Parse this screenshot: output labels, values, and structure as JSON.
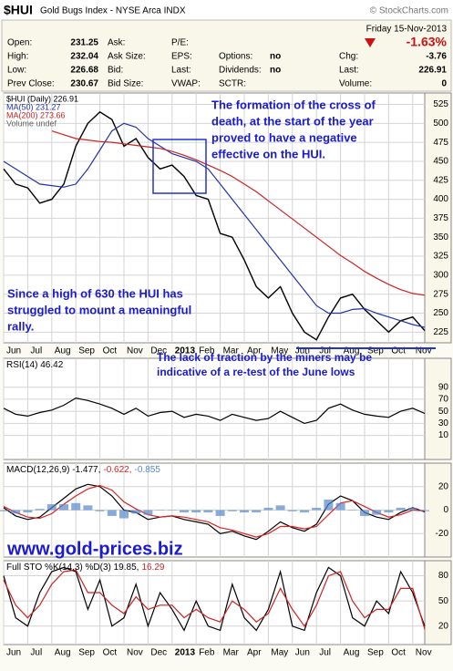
{
  "header": {
    "symbol": "$HUI",
    "name": "Gold Bugs Index - NYSE Arca INDX",
    "credit": "© StockCharts.com",
    "date": "Friday 15-Nov-2013",
    "change_pct": "-1.63%",
    "columns": [
      [
        {
          "label": "Open:",
          "value": "231.25"
        },
        {
          "label": "High:",
          "value": "232.04"
        },
        {
          "label": "Low:",
          "value": "226.68"
        },
        {
          "label": "Prev Close:",
          "value": "230.67"
        }
      ],
      [
        {
          "label": "Ask:"
        },
        {
          "label": "Ask Size:"
        },
        {
          "label": "Bid:"
        },
        {
          "label": "Bid Size:"
        }
      ],
      [
        {
          "label": "P/E:"
        },
        {
          "label": "EPS:"
        },
        {
          "label": "Last:"
        },
        {
          "label": "VWAP:"
        }
      ],
      [
        {
          "label": "Options:",
          "value": "no"
        },
        {
          "label": "Dividends:",
          "value": "no"
        },
        {
          "label": "SCTR:"
        }
      ],
      [
        {
          "label": "Chg:",
          "value": "-3.76"
        },
        {
          "label": "Last:",
          "value": "226.91"
        },
        {
          "label": "Volume:",
          "value": "0"
        }
      ]
    ]
  },
  "chart_data": [
    {
      "type": "line",
      "xlim": [
        0,
        17.5
      ],
      "ylim": [
        211,
        540
      ],
      "grid": true,
      "yticks": [
        225,
        250,
        275,
        300,
        325,
        350,
        375,
        400,
        425,
        450,
        475,
        500,
        525
      ],
      "xticks": [
        {
          "value": 0,
          "label": "Jun"
        },
        {
          "value": 1,
          "label": "Jul"
        },
        {
          "value": 2,
          "label": "Aug"
        },
        {
          "value": 3,
          "label": "Sep"
        },
        {
          "value": 4,
          "label": "Oct"
        },
        {
          "value": 5,
          "label": "Nov"
        },
        {
          "value": 6,
          "label": "Dec"
        },
        {
          "value": 7,
          "label": "2013"
        },
        {
          "value": 8,
          "label": "Feb"
        },
        {
          "value": 9,
          "label": "Mar"
        },
        {
          "value": 10,
          "label": "Apr"
        },
        {
          "value": 11,
          "label": "May"
        },
        {
          "value": 12,
          "label": "Jun"
        },
        {
          "value": 13,
          "label": "Jul"
        },
        {
          "value": 14,
          "label": "Aug"
        },
        {
          "value": 15,
          "label": "Sep"
        },
        {
          "value": 16,
          "label": "Oct"
        },
        {
          "value": 17,
          "label": "Nov"
        }
      ],
      "x": [
        0,
        0.5,
        1,
        1.5,
        2,
        2.5,
        3,
        3.5,
        4,
        4.5,
        5,
        5.5,
        6,
        6.5,
        7,
        7.5,
        8,
        8.5,
        9,
        9.5,
        10,
        10.5,
        11,
        11.5,
        12,
        12.5,
        13,
        13.5,
        14,
        14.5,
        15,
        15.5,
        16,
        16.5,
        17,
        17.5
      ],
      "series": [
        {
          "name": "$HUI (Daily) 226.91",
          "color": "#000000",
          "values": [
            440,
            420,
            415,
            395,
            400,
            420,
            470,
            500,
            515,
            505,
            470,
            480,
            455,
            440,
            445,
            430,
            405,
            400,
            355,
            350,
            320,
            285,
            270,
            285,
            250,
            225,
            215,
            245,
            270,
            275,
            255,
            240,
            225,
            240,
            245,
            226.91
          ]
        },
        {
          "name": "MA(50) 231.27",
          "color": "#2233aa",
          "values": [
            450,
            440,
            430,
            420,
            418,
            416,
            420,
            440,
            465,
            490,
            500,
            495,
            480,
            470,
            460,
            455,
            450,
            440,
            420,
            400,
            380,
            360,
            340,
            320,
            300,
            280,
            260,
            250,
            250,
            255,
            256,
            250,
            245,
            240,
            235,
            231.27
          ]
        },
        {
          "name": "MA(200) 273.66",
          "color": "#cc2222",
          "values": [
            null,
            null,
            null,
            null,
            490,
            485,
            480,
            478,
            476,
            475,
            473,
            471,
            469,
            467,
            463,
            458,
            452,
            445,
            438,
            430,
            420,
            410,
            398,
            386,
            374,
            362,
            350,
            338,
            326,
            316,
            305,
            296,
            288,
            281,
            276,
            273.66
          ]
        }
      ],
      "note": "Volume undef",
      "annotations": [
        [
          "The formation of the cross of",
          "death, at the start of the year",
          "proved to have a negative",
          "effective on the HUI."
        ],
        [
          "Since a high of 630 the HUI has",
          "struggled to mount a meaningful",
          "rally."
        ]
      ]
    },
    {
      "type": "line",
      "xlim": [
        0,
        17.5
      ],
      "ylim": [
        -30,
        138
      ],
      "grid": true,
      "yticks": [
        10,
        30,
        50,
        70,
        90
      ],
      "xticks": [
        0,
        1,
        2,
        3,
        4,
        5,
        6,
        7,
        8,
        9,
        10,
        11,
        12,
        13,
        14,
        15,
        16,
        17
      ],
      "x": [
        0,
        0.5,
        1,
        1.5,
        2,
        2.5,
        3,
        3.5,
        4,
        4.5,
        5,
        5.5,
        6,
        6.5,
        7,
        7.5,
        8,
        8.5,
        9,
        9.5,
        10,
        10.5,
        11,
        11.5,
        12,
        12.5,
        13,
        13.5,
        14,
        14.5,
        15,
        15.5,
        16,
        16.5,
        17,
        17.5
      ],
      "series": [
        {
          "name": "RSI(14) 46.42",
          "color": "#000000",
          "values": [
            55,
            45,
            42,
            48,
            52,
            60,
            72,
            68,
            62,
            55,
            45,
            55,
            42,
            48,
            50,
            40,
            45,
            42,
            35,
            45,
            40,
            35,
            38,
            50,
            40,
            30,
            35,
            55,
            62,
            52,
            45,
            42,
            40,
            50,
            55,
            46.42
          ]
        }
      ],
      "annotations": [
        [
          "The lack of traction by the miners may be",
          "indicative of a re-test of the June lows"
        ]
      ]
    },
    {
      "type": "line",
      "xlim": [
        0,
        17.5
      ],
      "ylim": [
        -40,
        40
      ],
      "grid": true,
      "yticks": [
        -20,
        0,
        20
      ],
      "xticks": [
        0,
        1,
        2,
        3,
        4,
        5,
        6,
        7,
        8,
        9,
        10,
        11,
        12,
        13,
        14,
        15,
        16,
        17
      ],
      "x": [
        0,
        0.5,
        1,
        1.5,
        2,
        2.5,
        3,
        3.5,
        4,
        4.5,
        5,
        5.5,
        6,
        6.5,
        7,
        7.5,
        8,
        8.5,
        9,
        9.5,
        10,
        10.5,
        11,
        11.5,
        12,
        12.5,
        13,
        13.5,
        14,
        14.5,
        15,
        15.5,
        16,
        16.5,
        17,
        17.5
      ],
      "series": [
        {
          "name": "MACD(12,26,9) -1.477,",
          "color": "#000000",
          "values": [
            2,
            -5,
            -8,
            -6,
            2,
            10,
            18,
            22,
            20,
            12,
            0,
            -2,
            -8,
            -6,
            -5,
            -8,
            -10,
            -12,
            -20,
            -18,
            -22,
            -25,
            -18,
            -10,
            -15,
            -18,
            -12,
            5,
            12,
            8,
            -2,
            -6,
            -8,
            -2,
            2,
            -1.477
          ]
        },
        {
          "name": "-0.622,",
          "color": "#dd2222",
          "values": [
            3,
            -2,
            -6,
            -7,
            -3,
            5,
            12,
            18,
            21,
            17,
            7,
            1,
            -4,
            -6,
            -5,
            -6,
            -8,
            -10,
            -15,
            -17,
            -20,
            -23,
            -20,
            -14,
            -14,
            -16,
            -14,
            -4,
            6,
            8,
            3,
            -2,
            -6,
            -4,
            0,
            -0.622
          ]
        },
        {
          "name": "-0.855",
          "color": "#5588cc",
          "style": "bar",
          "values": [
            -1,
            -3,
            -2,
            1,
            5,
            5,
            6,
            4,
            -1,
            -5,
            -7,
            -3,
            -4,
            0,
            0,
            -2,
            -2,
            -2,
            -5,
            -1,
            -2,
            -2,
            2,
            4,
            -1,
            -2,
            2,
            9,
            6,
            0,
            -5,
            -4,
            -2,
            2,
            2,
            -0.855
          ]
        }
      ],
      "watermark": "www.gold-prices.biz"
    },
    {
      "type": "line",
      "xlim": [
        0,
        17.5
      ],
      "ylim": [
        -2,
        98
      ],
      "grid": true,
      "yticks": [
        20,
        50,
        80
      ],
      "xticks": [
        {
          "value": 0,
          "label": "Jun"
        },
        {
          "value": 1,
          "label": "Jul"
        },
        {
          "value": 2,
          "label": "Aug"
        },
        {
          "value": 3,
          "label": "Sep"
        },
        {
          "value": 4,
          "label": "Oct"
        },
        {
          "value": 5,
          "label": "Nov"
        },
        {
          "value": 6,
          "label": "Dec"
        },
        {
          "value": 7,
          "label": "2013"
        },
        {
          "value": 8,
          "label": "Feb"
        },
        {
          "value": 9,
          "label": "Mar"
        },
        {
          "value": 10,
          "label": "Apr"
        },
        {
          "value": 11,
          "label": "May"
        },
        {
          "value": 12,
          "label": "Jun"
        },
        {
          "value": 13,
          "label": "Jul"
        },
        {
          "value": 14,
          "label": "Aug"
        },
        {
          "value": 15,
          "label": "Sep"
        },
        {
          "value": 16,
          "label": "Oct"
        },
        {
          "value": 17,
          "label": "Nov"
        }
      ],
      "x": [
        0,
        0.5,
        1,
        1.5,
        2,
        2.5,
        3,
        3.5,
        4,
        4.5,
        5,
        5.5,
        6,
        6.5,
        7,
        7.5,
        8,
        8.5,
        9,
        9.5,
        10,
        10.5,
        11,
        11.5,
        12,
        12.5,
        13,
        13.5,
        14,
        14.5,
        15,
        15.5,
        16,
        16.5,
        17,
        17.5
      ],
      "series": [
        {
          "name": "Full STO %K(14,3) %D(3) 19.85,",
          "color": "#000000",
          "values": [
            80,
            30,
            20,
            60,
            85,
            90,
            85,
            40,
            75,
            20,
            30,
            70,
            20,
            60,
            40,
            15,
            50,
            20,
            15,
            70,
            30,
            15,
            40,
            85,
            20,
            15,
            60,
            90,
            80,
            30,
            20,
            50,
            35,
            85,
            60,
            19.85
          ]
        },
        {
          "name": "16.29",
          "color": "#cc2222",
          "values": [
            75,
            45,
            30,
            45,
            70,
            85,
            87,
            60,
            60,
            45,
            35,
            55,
            40,
            45,
            45,
            30,
            40,
            30,
            25,
            50,
            40,
            25,
            35,
            65,
            40,
            20,
            45,
            80,
            85,
            50,
            30,
            40,
            40,
            65,
            65,
            16.29
          ]
        }
      ]
    }
  ]
}
